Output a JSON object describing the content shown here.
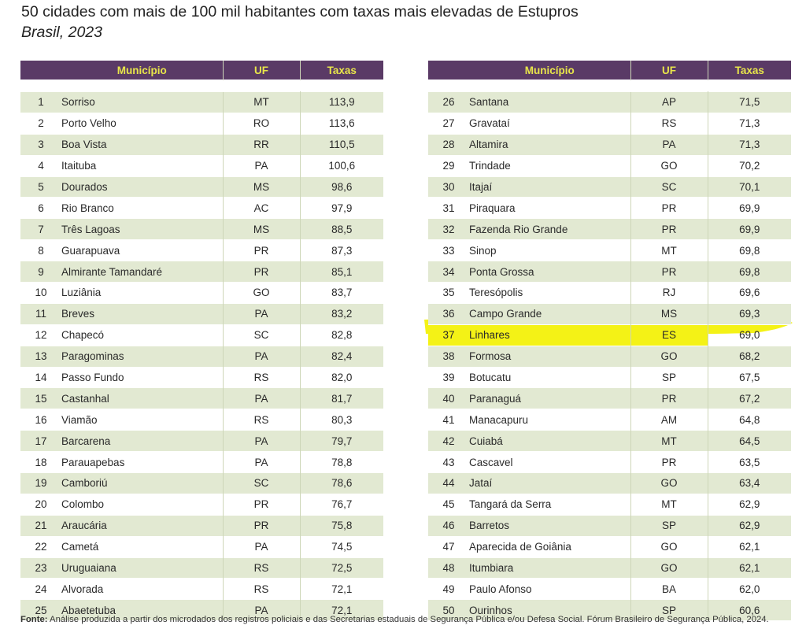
{
  "title": "50 cidades com mais de 100 mil habitantes com taxas mais elevadas de Estupros",
  "subtitle": "Brasil, 2023",
  "headers": {
    "rank": "",
    "municipio": "Município",
    "uf": "UF",
    "taxas": "Taxas"
  },
  "highlight_rank": "37",
  "highlight_color": "#f4f216",
  "header_color": "#5a3a66",
  "header_text_color": "#e8e54a",
  "stripe_color": "#e2e9d2",
  "rows": [
    {
      "rank": "1",
      "municipio": "Sorriso",
      "uf": "MT",
      "taxa": "113,9"
    },
    {
      "rank": "2",
      "municipio": "Porto Velho",
      "uf": "RO",
      "taxa": "113,6"
    },
    {
      "rank": "3",
      "municipio": "Boa Vista",
      "uf": "RR",
      "taxa": "110,5"
    },
    {
      "rank": "4",
      "municipio": "Itaituba",
      "uf": "PA",
      "taxa": "100,6"
    },
    {
      "rank": "5",
      "municipio": "Dourados",
      "uf": "MS",
      "taxa": "98,6"
    },
    {
      "rank": "6",
      "municipio": "Rio Branco",
      "uf": "AC",
      "taxa": "97,9"
    },
    {
      "rank": "7",
      "municipio": "Três Lagoas",
      "uf": "MS",
      "taxa": "88,5"
    },
    {
      "rank": "8",
      "municipio": "Guarapuava",
      "uf": "PR",
      "taxa": "87,3"
    },
    {
      "rank": "9",
      "municipio": "Almirante Tamandaré",
      "uf": "PR",
      "taxa": "85,1"
    },
    {
      "rank": "10",
      "municipio": "Luziânia",
      "uf": "GO",
      "taxa": "83,7"
    },
    {
      "rank": "11",
      "municipio": "Breves",
      "uf": "PA",
      "taxa": "83,2"
    },
    {
      "rank": "12",
      "municipio": "Chapecó",
      "uf": "SC",
      "taxa": "82,8"
    },
    {
      "rank": "13",
      "municipio": "Paragominas",
      "uf": "PA",
      "taxa": "82,4"
    },
    {
      "rank": "14",
      "municipio": "Passo Fundo",
      "uf": "RS",
      "taxa": "82,0"
    },
    {
      "rank": "15",
      "municipio": "Castanhal",
      "uf": "PA",
      "taxa": "81,7"
    },
    {
      "rank": "16",
      "municipio": "Viamão",
      "uf": "RS",
      "taxa": "80,3"
    },
    {
      "rank": "17",
      "municipio": "Barcarena",
      "uf": "PA",
      "taxa": "79,7"
    },
    {
      "rank": "18",
      "municipio": "Parauapebas",
      "uf": "PA",
      "taxa": "78,8"
    },
    {
      "rank": "19",
      "municipio": "Camboriú",
      "uf": "SC",
      "taxa": "78,6"
    },
    {
      "rank": "20",
      "municipio": "Colombo",
      "uf": "PR",
      "taxa": "76,7"
    },
    {
      "rank": "21",
      "municipio": "Araucária",
      "uf": "PR",
      "taxa": "75,8"
    },
    {
      "rank": "22",
      "municipio": "Cametá",
      "uf": "PA",
      "taxa": "74,5"
    },
    {
      "rank": "23",
      "municipio": "Uruguaiana",
      "uf": "RS",
      "taxa": "72,5"
    },
    {
      "rank": "24",
      "municipio": "Alvorada",
      "uf": "RS",
      "taxa": "72,1"
    },
    {
      "rank": "25",
      "municipio": "Abaetetuba",
      "uf": "PA",
      "taxa": "72,1"
    },
    {
      "rank": "26",
      "municipio": "Santana",
      "uf": "AP",
      "taxa": "71,5"
    },
    {
      "rank": "27",
      "municipio": "Gravataí",
      "uf": "RS",
      "taxa": "71,3"
    },
    {
      "rank": "28",
      "municipio": "Altamira",
      "uf": "PA",
      "taxa": "71,3"
    },
    {
      "rank": "29",
      "municipio": "Trindade",
      "uf": "GO",
      "taxa": "70,2"
    },
    {
      "rank": "30",
      "municipio": "Itajaí",
      "uf": "SC",
      "taxa": "70,1"
    },
    {
      "rank": "31",
      "municipio": "Piraquara",
      "uf": "PR",
      "taxa": "69,9"
    },
    {
      "rank": "32",
      "municipio": "Fazenda Rio Grande",
      "uf": "PR",
      "taxa": "69,9"
    },
    {
      "rank": "33",
      "municipio": "Sinop",
      "uf": "MT",
      "taxa": "69,8"
    },
    {
      "rank": "34",
      "municipio": "Ponta Grossa",
      "uf": "PR",
      "taxa": "69,8"
    },
    {
      "rank": "35",
      "municipio": "Teresópolis",
      "uf": "RJ",
      "taxa": "69,6"
    },
    {
      "rank": "36",
      "municipio": "Campo Grande",
      "uf": "MS",
      "taxa": "69,3"
    },
    {
      "rank": "37",
      "municipio": "Linhares",
      "uf": "ES",
      "taxa": "69,0"
    },
    {
      "rank": "38",
      "municipio": "Formosa",
      "uf": "GO",
      "taxa": "68,2"
    },
    {
      "rank": "39",
      "municipio": "Botucatu",
      "uf": "SP",
      "taxa": "67,5"
    },
    {
      "rank": "40",
      "municipio": "Paranaguá",
      "uf": "PR",
      "taxa": "67,2"
    },
    {
      "rank": "41",
      "municipio": "Manacapuru",
      "uf": "AM",
      "taxa": "64,8"
    },
    {
      "rank": "42",
      "municipio": "Cuiabá",
      "uf": "MT",
      "taxa": "64,5"
    },
    {
      "rank": "43",
      "municipio": "Cascavel",
      "uf": "PR",
      "taxa": "63,5"
    },
    {
      "rank": "44",
      "municipio": "Jataí",
      "uf": "GO",
      "taxa": "63,4"
    },
    {
      "rank": "45",
      "municipio": "Tangará da Serra",
      "uf": "MT",
      "taxa": "62,9"
    },
    {
      "rank": "46",
      "municipio": "Barretos",
      "uf": "SP",
      "taxa": "62,9"
    },
    {
      "rank": "47",
      "municipio": "Aparecida de Goiânia",
      "uf": "GO",
      "taxa": "62,1"
    },
    {
      "rank": "48",
      "municipio": "Itumbiara",
      "uf": "GO",
      "taxa": "62,1"
    },
    {
      "rank": "49",
      "municipio": "Paulo Afonso",
      "uf": "BA",
      "taxa": "62,0"
    },
    {
      "rank": "50",
      "municipio": "Ourinhos",
      "uf": "SP",
      "taxa": "60,6"
    }
  ],
  "source": {
    "label": "Fonte:",
    "text": " Análise produzida a partir dos microdados dos registros policiais e das Secretarias estaduais de Segurança Pública e/ou Defesa Social. Fórum Brasileiro de Segurança Pública, 2024."
  }
}
